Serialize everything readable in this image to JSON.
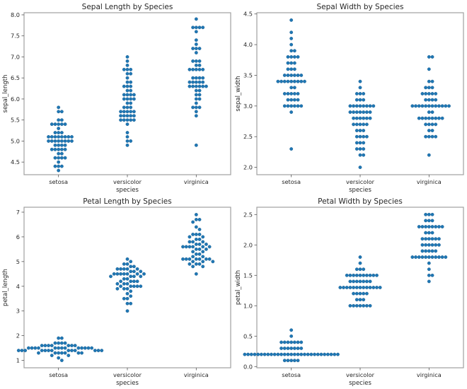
{
  "chart_data": [
    {
      "type": "scatter",
      "subtype": "swarm",
      "title": "Sepal Length by Species",
      "xlabel": "species",
      "ylabel": "sepal_length",
      "categories": [
        "setosa",
        "versicolor",
        "virginica"
      ],
      "ylim": [
        4.2,
        8.05
      ],
      "yticks": [
        4.5,
        5.0,
        5.5,
        6.0,
        6.5,
        7.0,
        7.5,
        8.0
      ],
      "ytick_labels": [
        "4.5",
        "5.0",
        "5.5",
        "6.0",
        "6.5",
        "7.0",
        "7.5",
        "8.0"
      ],
      "color": "#1f77b4",
      "series": [
        {
          "name": "setosa",
          "values": [
            5.1,
            4.9,
            4.7,
            4.6,
            5.0,
            5.4,
            4.6,
            5.0,
            4.4,
            4.9,
            5.4,
            4.8,
            4.8,
            4.3,
            5.8,
            5.7,
            5.4,
            5.1,
            5.7,
            5.1,
            5.4,
            5.1,
            4.6,
            5.1,
            4.8,
            5.0,
            5.0,
            5.2,
            5.2,
            4.7,
            4.8,
            5.4,
            5.2,
            5.5,
            4.9,
            5.0,
            5.5,
            4.9,
            4.4,
            5.1,
            5.0,
            4.5,
            4.4,
            5.0,
            5.1,
            4.8,
            5.1,
            4.6,
            5.3,
            5.0
          ]
        },
        {
          "name": "versicolor",
          "values": [
            7.0,
            6.4,
            6.9,
            5.5,
            6.5,
            5.7,
            6.3,
            4.9,
            6.6,
            5.2,
            5.0,
            5.9,
            6.0,
            6.1,
            5.6,
            6.7,
            5.6,
            5.8,
            6.2,
            5.6,
            5.9,
            6.1,
            6.3,
            6.1,
            6.4,
            6.6,
            6.8,
            6.7,
            6.0,
            5.7,
            5.5,
            5.5,
            5.8,
            6.0,
            5.4,
            6.0,
            6.7,
            6.3,
            5.6,
            5.5,
            5.5,
            6.1,
            5.8,
            5.0,
            5.6,
            5.7,
            5.7,
            6.2,
            5.1,
            5.7
          ]
        },
        {
          "name": "virginica",
          "values": [
            6.3,
            5.8,
            7.1,
            6.3,
            6.5,
            7.6,
            4.9,
            7.3,
            6.7,
            7.2,
            6.5,
            6.4,
            6.8,
            5.7,
            5.8,
            6.4,
            6.5,
            7.7,
            7.7,
            6.0,
            6.9,
            5.6,
            7.7,
            6.3,
            6.7,
            7.2,
            6.2,
            6.1,
            6.4,
            7.2,
            7.4,
            7.9,
            6.4,
            6.3,
            6.1,
            7.7,
            6.3,
            6.4,
            6.0,
            6.9,
            6.7,
            6.9,
            5.8,
            6.8,
            6.7,
            6.7,
            6.3,
            6.5,
            6.2,
            5.9
          ]
        }
      ]
    },
    {
      "type": "scatter",
      "subtype": "swarm",
      "title": "Sepal Width by Species",
      "xlabel": "species",
      "ylabel": "sepal_width",
      "categories": [
        "setosa",
        "versicolor",
        "virginica"
      ],
      "ylim": [
        1.88,
        4.52
      ],
      "yticks": [
        2.0,
        2.5,
        3.0,
        3.5,
        4.0,
        4.5
      ],
      "ytick_labels": [
        "2.0",
        "2.5",
        "3.0",
        "3.5",
        "4.0",
        "4.5"
      ],
      "color": "#1f77b4",
      "series": [
        {
          "name": "setosa",
          "values": [
            3.5,
            3.0,
            3.2,
            3.1,
            3.6,
            3.9,
            3.4,
            3.4,
            2.9,
            3.1,
            3.7,
            3.4,
            3.0,
            3.0,
            4.0,
            4.4,
            3.9,
            3.5,
            3.8,
            3.8,
            3.4,
            3.7,
            3.6,
            3.3,
            3.4,
            3.0,
            3.4,
            3.5,
            3.4,
            3.2,
            3.1,
            3.4,
            4.1,
            4.2,
            3.1,
            3.2,
            3.5,
            3.6,
            3.0,
            3.4,
            3.5,
            2.3,
            3.2,
            3.5,
            3.8,
            3.0,
            3.8,
            3.2,
            3.7,
            3.3
          ]
        },
        {
          "name": "versicolor",
          "values": [
            3.2,
            3.2,
            3.1,
            2.3,
            2.8,
            2.8,
            3.3,
            2.4,
            2.9,
            2.7,
            2.0,
            3.0,
            2.2,
            2.9,
            2.9,
            3.1,
            3.0,
            2.7,
            2.2,
            2.5,
            3.2,
            2.8,
            2.5,
            2.8,
            2.9,
            3.0,
            2.8,
            3.0,
            2.9,
            2.6,
            2.4,
            2.4,
            2.7,
            2.7,
            3.0,
            3.4,
            3.1,
            2.3,
            3.0,
            2.5,
            2.6,
            3.0,
            2.6,
            2.3,
            2.7,
            3.0,
            2.9,
            2.9,
            2.5,
            2.8
          ]
        },
        {
          "name": "virginica",
          "values": [
            3.3,
            2.7,
            3.0,
            2.9,
            3.0,
            3.0,
            2.5,
            2.9,
            2.5,
            3.6,
            3.2,
            2.7,
            3.0,
            2.5,
            2.8,
            3.2,
            3.0,
            3.8,
            2.6,
            2.2,
            3.2,
            2.8,
            2.8,
            2.7,
            3.3,
            3.2,
            2.8,
            3.0,
            2.8,
            3.0,
            2.8,
            3.8,
            2.8,
            2.8,
            2.6,
            3.0,
            3.4,
            3.1,
            3.0,
            3.1,
            3.1,
            3.1,
            2.7,
            3.2,
            3.3,
            3.0,
            2.5,
            3.0,
            3.4,
            3.0
          ]
        }
      ]
    },
    {
      "type": "scatter",
      "subtype": "swarm",
      "title": "Petal Length by Species",
      "xlabel": "species",
      "ylabel": "petal_length",
      "categories": [
        "setosa",
        "versicolor",
        "virginica"
      ],
      "ylim": [
        0.7,
        7.2
      ],
      "yticks": [
        1,
        2,
        3,
        4,
        5,
        6,
        7
      ],
      "ytick_labels": [
        "1",
        "2",
        "3",
        "4",
        "5",
        "6",
        "7"
      ],
      "color": "#1f77b4",
      "series": [
        {
          "name": "setosa",
          "values": [
            1.4,
            1.4,
            1.3,
            1.5,
            1.4,
            1.7,
            1.4,
            1.5,
            1.4,
            1.5,
            1.5,
            1.6,
            1.4,
            1.1,
            1.2,
            1.5,
            1.3,
            1.4,
            1.7,
            1.5,
            1.7,
            1.5,
            1.0,
            1.7,
            1.9,
            1.6,
            1.6,
            1.5,
            1.4,
            1.6,
            1.6,
            1.5,
            1.5,
            1.4,
            1.5,
            1.2,
            1.3,
            1.4,
            1.3,
            1.5,
            1.3,
            1.3,
            1.3,
            1.6,
            1.9,
            1.4,
            1.6,
            1.4,
            1.5,
            1.4
          ]
        },
        {
          "name": "versicolor",
          "values": [
            4.7,
            4.5,
            4.9,
            4.0,
            4.6,
            4.5,
            4.7,
            3.3,
            4.6,
            3.9,
            3.5,
            4.2,
            4.0,
            4.7,
            3.6,
            4.4,
            4.5,
            4.1,
            4.5,
            3.9,
            4.8,
            4.0,
            4.9,
            4.7,
            4.3,
            4.4,
            4.8,
            5.0,
            4.5,
            3.5,
            3.8,
            3.7,
            3.9,
            5.1,
            4.5,
            4.5,
            4.7,
            4.4,
            4.1,
            4.0,
            4.4,
            4.6,
            4.0,
            3.3,
            4.2,
            4.2,
            4.2,
            4.3,
            3.0,
            4.1
          ]
        },
        {
          "name": "virginica",
          "values": [
            6.0,
            5.1,
            5.9,
            5.6,
            5.8,
            6.6,
            4.5,
            6.3,
            5.8,
            6.1,
            5.1,
            5.3,
            5.5,
            5.0,
            5.1,
            5.3,
            5.5,
            6.7,
            6.9,
            5.0,
            5.7,
            4.9,
            6.7,
            4.9,
            5.7,
            6.0,
            4.8,
            4.9,
            5.6,
            5.8,
            6.1,
            6.4,
            5.6,
            5.1,
            5.6,
            6.1,
            5.6,
            5.5,
            4.8,
            5.4,
            5.6,
            5.1,
            5.1,
            5.9,
            5.7,
            5.2,
            5.0,
            5.2,
            5.4,
            5.1
          ]
        }
      ]
    },
    {
      "type": "scatter",
      "subtype": "swarm",
      "title": "Petal Width by Species",
      "xlabel": "species",
      "ylabel": "petal_width",
      "categories": [
        "setosa",
        "versicolor",
        "virginica"
      ],
      "ylim": [
        -0.02,
        2.62
      ],
      "yticks": [
        0.0,
        0.5,
        1.0,
        1.5,
        2.0,
        2.5
      ],
      "ytick_labels": [
        "0.0",
        "0.5",
        "1.0",
        "1.5",
        "2.0",
        "2.5"
      ],
      "color": "#1f77b4",
      "series": [
        {
          "name": "setosa",
          "values": [
            0.2,
            0.2,
            0.2,
            0.2,
            0.2,
            0.4,
            0.3,
            0.2,
            0.2,
            0.1,
            0.2,
            0.2,
            0.1,
            0.1,
            0.2,
            0.4,
            0.4,
            0.3,
            0.3,
            0.3,
            0.2,
            0.4,
            0.2,
            0.5,
            0.2,
            0.2,
            0.4,
            0.2,
            0.2,
            0.2,
            0.2,
            0.4,
            0.1,
            0.2,
            0.2,
            0.2,
            0.2,
            0.1,
            0.2,
            0.2,
            0.3,
            0.3,
            0.2,
            0.6,
            0.4,
            0.3,
            0.2,
            0.2,
            0.2,
            0.2
          ]
        },
        {
          "name": "versicolor",
          "values": [
            1.4,
            1.5,
            1.5,
            1.3,
            1.5,
            1.3,
            1.6,
            1.0,
            1.3,
            1.4,
            1.0,
            1.5,
            1.0,
            1.4,
            1.3,
            1.4,
            1.5,
            1.0,
            1.5,
            1.1,
            1.8,
            1.3,
            1.5,
            1.2,
            1.3,
            1.4,
            1.4,
            1.7,
            1.5,
            1.0,
            1.1,
            1.0,
            1.2,
            1.6,
            1.5,
            1.6,
            1.5,
            1.3,
            1.3,
            1.3,
            1.2,
            1.4,
            1.2,
            1.0,
            1.3,
            1.2,
            1.3,
            1.3,
            1.1,
            1.3
          ]
        },
        {
          "name": "virginica",
          "values": [
            2.5,
            1.9,
            2.1,
            1.8,
            2.2,
            2.1,
            1.7,
            1.8,
            1.8,
            2.5,
            2.0,
            1.9,
            2.1,
            2.0,
            2.4,
            2.3,
            1.8,
            2.2,
            2.3,
            1.5,
            2.3,
            2.0,
            2.0,
            1.8,
            2.1,
            1.8,
            1.8,
            1.8,
            2.1,
            1.6,
            1.9,
            2.0,
            2.2,
            1.5,
            1.4,
            2.3,
            2.4,
            1.8,
            1.8,
            2.1,
            2.4,
            2.3,
            1.9,
            2.3,
            2.5,
            2.3,
            1.9,
            2.0,
            2.3,
            1.8
          ]
        }
      ]
    }
  ]
}
